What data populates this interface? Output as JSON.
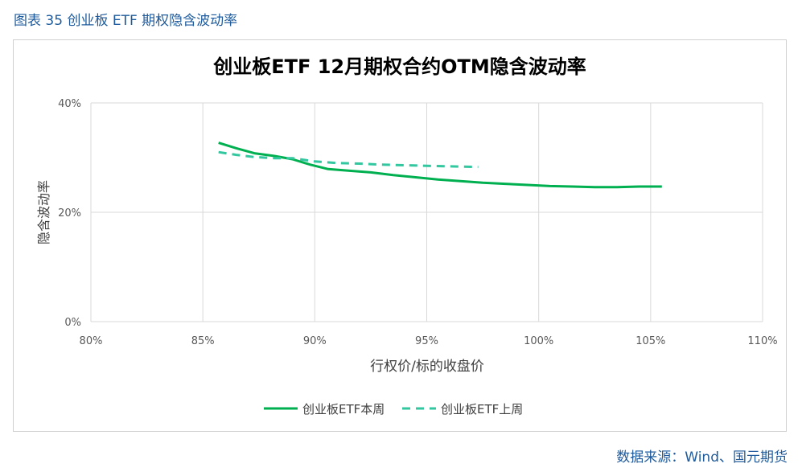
{
  "caption": "图表 35 创业板 ETF 期权隐含波动率",
  "source": "数据来源：Wind、国元期货",
  "chart_data": {
    "type": "line",
    "title": "创业板ETF 12月期权合约OTM隐含波动率",
    "xlabel": "行权价/标的收盘价",
    "ylabel": "隐含波动率",
    "xlim": [
      80,
      110
    ],
    "ylim": [
      0,
      40
    ],
    "x_ticks": [
      "80%",
      "85%",
      "90%",
      "95%",
      "100%",
      "105%",
      "110%"
    ],
    "y_ticks": [
      "0%",
      "20%",
      "40%"
    ],
    "grid": true,
    "legend_position": "bottom",
    "colors": {
      "this_week": "#00b050",
      "last_week": "#33c7a0"
    },
    "series": [
      {
        "name": "创业板ETF本周",
        "style": "solid",
        "x": [
          85.7,
          86.5,
          87.3,
          88.2,
          89.0,
          89.8,
          90.6,
          91.5,
          92.5,
          93.5,
          94.5,
          95.5,
          96.5,
          97.5,
          98.5,
          99.5,
          100.5,
          101.5,
          102.5,
          103.5,
          104.5,
          105.5
        ],
        "y": [
          32.7,
          31.7,
          30.8,
          30.3,
          29.7,
          28.7,
          27.9,
          27.6,
          27.3,
          26.8,
          26.4,
          26.0,
          25.7,
          25.4,
          25.2,
          25.0,
          24.8,
          24.7,
          24.6,
          24.6,
          24.7,
          24.7
        ]
      },
      {
        "name": "创业板ETF上周",
        "style": "dashed",
        "x": [
          85.7,
          86.5,
          87.3,
          88.2,
          89.0,
          90.0,
          91.0,
          92.0,
          93.0,
          94.0,
          95.0,
          96.0,
          97.3
        ],
        "y": [
          31.0,
          30.5,
          30.1,
          29.9,
          29.9,
          29.3,
          29.0,
          28.9,
          28.7,
          28.6,
          28.5,
          28.4,
          28.3
        ]
      }
    ]
  }
}
